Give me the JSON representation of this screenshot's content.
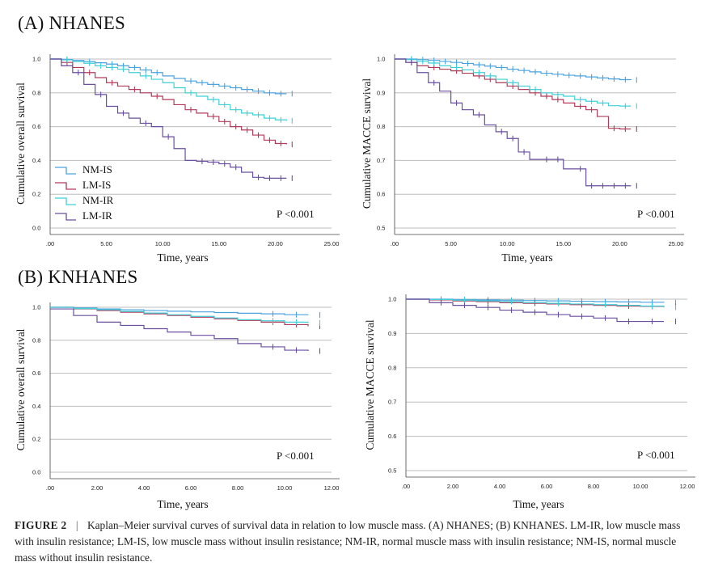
{
  "sections": {
    "a_title": "(A) NHANES",
    "b_title": "(B) KNHANES"
  },
  "colors": {
    "NM-IS": "#4aa3df",
    "LM-IS": "#b23a5a",
    "NM-IR": "#3fd0d8",
    "LM-IR": "#6a4fa0"
  },
  "caption": {
    "label": "FIGURE 2",
    "separator": "|",
    "text": "Kaplan–Meier survival curves of survival data in relation to low muscle mass. (A) NHANES; (B) KNHANES. LM-IR, low muscle mass with insulin resistance; LM-IS, low muscle mass without insulin resistance; NM-IR, normal muscle mass with insulin resistance; NM-IS, normal muscle mass without insulin resistance."
  },
  "chart_data": [
    {
      "id": "nhanes-overall",
      "type": "line",
      "ylabel": "Cumulative overall survival",
      "xlabel": "Time, years",
      "xlim": [
        0,
        25
      ],
      "ylim": [
        0,
        1.0
      ],
      "xticks": [
        ".00",
        "5.00",
        "10.00",
        "15.00",
        "20.00",
        "25.00"
      ],
      "yticks": [
        "0.0",
        "0.2",
        "0.4",
        "0.6",
        "0.8",
        "1.0"
      ],
      "p_value": "P <0.001",
      "legend": [
        "NM-IS",
        "LM-IS",
        "NM-IR",
        "LM-IR"
      ],
      "series": [
        {
          "name": "NM-IS",
          "x": [
            0,
            1,
            2,
            3,
            4,
            5,
            6,
            7,
            8,
            9,
            10,
            11,
            12,
            13,
            14,
            15,
            16,
            17,
            18,
            19,
            20,
            21
          ],
          "y": [
            1.0,
            0.998,
            0.992,
            0.985,
            0.978,
            0.97,
            0.96,
            0.95,
            0.935,
            0.92,
            0.9,
            0.885,
            0.87,
            0.86,
            0.85,
            0.84,
            0.83,
            0.82,
            0.81,
            0.8,
            0.795,
            0.795
          ],
          "censor": [
            1,
            3,
            5,
            6,
            7,
            8,
            9,
            12,
            13,
            14,
            15,
            16,
            17,
            18,
            19,
            20,
            21
          ]
        },
        {
          "name": "LM-IS",
          "x": [
            0,
            1,
            2,
            3,
            4,
            5,
            6,
            7,
            8,
            9,
            10,
            11,
            12,
            13,
            14,
            15,
            16,
            17,
            18,
            19,
            20,
            21
          ],
          "y": [
            1.0,
            0.98,
            0.95,
            0.92,
            0.89,
            0.86,
            0.84,
            0.82,
            0.8,
            0.78,
            0.76,
            0.73,
            0.7,
            0.68,
            0.66,
            0.63,
            0.6,
            0.58,
            0.55,
            0.52,
            0.5,
            0.495
          ],
          "censor": [
            1,
            3,
            5,
            7,
            9,
            12,
            14,
            15,
            16,
            17,
            18,
            19,
            20,
            21
          ]
        },
        {
          "name": "NM-IR",
          "x": [
            0,
            1,
            2,
            3,
            4,
            5,
            6,
            7,
            8,
            9,
            10,
            11,
            12,
            13,
            14,
            15,
            16,
            17,
            18,
            19,
            20,
            21
          ],
          "y": [
            1.0,
            0.995,
            0.985,
            0.975,
            0.96,
            0.95,
            0.94,
            0.92,
            0.9,
            0.88,
            0.86,
            0.83,
            0.8,
            0.78,
            0.76,
            0.73,
            0.7,
            0.68,
            0.67,
            0.65,
            0.64,
            0.635
          ],
          "censor": [
            1,
            3,
            4,
            5,
            6,
            8,
            12,
            14,
            15,
            16,
            17,
            18,
            19,
            20,
            21
          ]
        },
        {
          "name": "LM-IR",
          "x": [
            0,
            1,
            2,
            3,
            4,
            5,
            6,
            7,
            8,
            9,
            10,
            11,
            12,
            13,
            14,
            15,
            16,
            17,
            18,
            19,
            20,
            21
          ],
          "y": [
            1.0,
            0.96,
            0.92,
            0.85,
            0.79,
            0.72,
            0.68,
            0.65,
            0.62,
            0.6,
            0.54,
            0.47,
            0.4,
            0.395,
            0.39,
            0.38,
            0.36,
            0.33,
            0.3,
            0.295,
            0.295,
            0.295
          ],
          "censor": [
            2,
            4,
            6,
            8,
            10,
            13,
            14,
            15,
            16,
            18,
            19,
            20,
            21
          ]
        }
      ]
    },
    {
      "id": "nhanes-macce",
      "type": "line",
      "ylabel": "Cumulative MACCE survival",
      "xlabel": "Time, years",
      "xlim": [
        0,
        25
      ],
      "ylim": [
        0.5,
        1.0
      ],
      "xticks": [
        ".00",
        "5.00",
        "10.00",
        "15.00",
        "20.00",
        "25.00"
      ],
      "yticks": [
        "0.5",
        "0.6",
        "0.7",
        "0.8",
        "0.9",
        "1.0"
      ],
      "p_value": "P <0.001",
      "series": [
        {
          "name": "NM-IS",
          "x": [
            0,
            1,
            2,
            3,
            4,
            5,
            6,
            7,
            8,
            9,
            10,
            11,
            12,
            13,
            14,
            15,
            16,
            17,
            18,
            19,
            20,
            21
          ],
          "y": [
            1.0,
            1.0,
            0.998,
            0.996,
            0.993,
            0.99,
            0.987,
            0.983,
            0.979,
            0.975,
            0.97,
            0.966,
            0.962,
            0.958,
            0.955,
            0.952,
            0.95,
            0.947,
            0.944,
            0.941,
            0.939,
            0.938
          ],
          "censor": [
            1,
            2,
            3,
            4,
            5,
            6,
            7,
            8,
            9,
            10,
            11,
            12,
            13,
            14,
            15,
            16,
            17,
            18,
            19,
            20,
            21
          ]
        },
        {
          "name": "LM-IS",
          "x": [
            0,
            1,
            2,
            3,
            4,
            5,
            6,
            7,
            8,
            9,
            10,
            11,
            12,
            13,
            14,
            15,
            16,
            17,
            18,
            19,
            20,
            21
          ],
          "y": [
            1.0,
            0.99,
            0.98,
            0.975,
            0.97,
            0.965,
            0.958,
            0.95,
            0.94,
            0.93,
            0.92,
            0.91,
            0.9,
            0.89,
            0.88,
            0.87,
            0.86,
            0.85,
            0.83,
            0.795,
            0.793,
            0.793
          ],
          "censor": [
            1,
            3,
            5,
            7,
            8,
            10,
            12,
            13,
            14,
            16,
            17,
            19,
            20,
            21
          ]
        },
        {
          "name": "NM-IR",
          "x": [
            0,
            1,
            2,
            3,
            4,
            5,
            6,
            7,
            8,
            9,
            10,
            11,
            12,
            13,
            14,
            15,
            16,
            17,
            18,
            19,
            20,
            21
          ],
          "y": [
            1.0,
            0.998,
            0.993,
            0.988,
            0.98,
            0.975,
            0.968,
            0.96,
            0.95,
            0.94,
            0.93,
            0.92,
            0.91,
            0.9,
            0.895,
            0.89,
            0.88,
            0.875,
            0.87,
            0.862,
            0.861,
            0.861
          ],
          "censor": [
            1,
            2,
            3,
            5,
            7,
            8,
            10,
            12,
            14,
            16,
            17,
            18,
            20,
            21
          ]
        },
        {
          "name": "LM-IR",
          "x": [
            0,
            1,
            2,
            3,
            4,
            5,
            6,
            7,
            8,
            9,
            10,
            11,
            12,
            13,
            14,
            15,
            16,
            17,
            18,
            19,
            20,
            21
          ],
          "y": [
            1.0,
            0.99,
            0.96,
            0.93,
            0.905,
            0.87,
            0.85,
            0.835,
            0.805,
            0.785,
            0.765,
            0.725,
            0.703,
            0.703,
            0.703,
            0.675,
            0.675,
            0.625,
            0.625,
            0.625,
            0.625,
            0.625
          ],
          "censor": [
            1,
            3,
            5,
            7,
            9,
            10,
            11,
            13,
            14,
            16,
            17,
            18,
            19,
            20,
            21
          ]
        }
      ]
    },
    {
      "id": "knhanes-overall",
      "type": "line",
      "ylabel": "Cumulative overall survival",
      "xlabel": "Time, years",
      "xlim": [
        0,
        12
      ],
      "ylim": [
        0,
        1.0
      ],
      "xticks": [
        ".00",
        "2.00",
        "4.00",
        "6.00",
        "8.00",
        "10.00",
        "12.00"
      ],
      "yticks": [
        "0.0",
        "0.2",
        "0.4",
        "0.6",
        "0.8",
        "1.0"
      ],
      "p_value": "P <0.001",
      "series": [
        {
          "name": "NM-IS",
          "x": [
            0,
            1,
            2,
            3,
            4,
            5,
            6,
            7,
            8,
            9,
            10,
            11
          ],
          "y": [
            1.0,
            0.996,
            0.99,
            0.985,
            0.98,
            0.976,
            0.972,
            0.968,
            0.964,
            0.96,
            0.955,
            0.953
          ],
          "censor": [
            9,
            10,
            11
          ]
        },
        {
          "name": "LM-IS",
          "x": [
            0,
            1,
            2,
            3,
            4,
            5,
            6,
            7,
            8,
            9,
            10,
            11
          ],
          "y": [
            1.0,
            0.99,
            0.98,
            0.97,
            0.96,
            0.95,
            0.94,
            0.93,
            0.92,
            0.91,
            0.895,
            0.885
          ],
          "censor": [
            9,
            10,
            11
          ]
        },
        {
          "name": "NM-IR",
          "x": [
            0,
            1,
            2,
            3,
            4,
            5,
            6,
            7,
            8,
            9,
            10,
            11
          ],
          "y": [
            1.0,
            0.992,
            0.985,
            0.975,
            0.965,
            0.955,
            0.945,
            0.935,
            0.925,
            0.918,
            0.91,
            0.905
          ],
          "censor": [
            9,
            10,
            11
          ]
        },
        {
          "name": "LM-IR",
          "x": [
            0,
            1,
            2,
            3,
            4,
            5,
            6,
            7,
            8,
            9,
            10,
            11
          ],
          "y": [
            0.99,
            0.95,
            0.91,
            0.89,
            0.87,
            0.85,
            0.83,
            0.81,
            0.78,
            0.76,
            0.74,
            0.735
          ],
          "censor": [
            9,
            10,
            11
          ]
        }
      ]
    },
    {
      "id": "knhanes-macce",
      "type": "line",
      "ylabel": "Cumulative MACCE survival",
      "xlabel": "Time, years",
      "xlim": [
        0,
        12
      ],
      "ylim": [
        0.5,
        1.0
      ],
      "xticks": [
        ".00",
        "2.00",
        "4.00",
        "6.00",
        "8.00",
        "10.00",
        "12.00"
      ],
      "yticks": [
        "0.5",
        "0.6",
        "0.7",
        "0.8",
        "0.9",
        "1.0"
      ],
      "p_value": "P <0.001",
      "series": [
        {
          "name": "NM-IS",
          "x": [
            0,
            1,
            2,
            3,
            4,
            5,
            6,
            7,
            8,
            9,
            10,
            11
          ],
          "y": [
            1.0,
            1.0,
            0.999,
            0.998,
            0.997,
            0.996,
            0.995,
            0.994,
            0.993,
            0.992,
            0.991,
            0.99
          ],
          "censor": [
            1,
            2,
            3,
            4,
            5,
            6,
            7,
            8,
            9,
            10,
            11
          ]
        },
        {
          "name": "LM-IS",
          "x": [
            0,
            1,
            2,
            3,
            4,
            5,
            6,
            7,
            8,
            9,
            10,
            11
          ],
          "y": [
            1.0,
            0.998,
            0.995,
            0.993,
            0.99,
            0.988,
            0.986,
            0.984,
            0.982,
            0.98,
            0.979,
            0.978
          ],
          "censor": [
            3,
            5,
            7,
            9,
            10,
            11
          ]
        },
        {
          "name": "NM-IR",
          "x": [
            0,
            1,
            2,
            3,
            4,
            5,
            6,
            7,
            8,
            9,
            10,
            11
          ],
          "y": [
            1.0,
            0.999,
            0.997,
            0.995,
            0.993,
            0.99,
            0.988,
            0.986,
            0.984,
            0.982,
            0.98,
            0.976
          ],
          "censor": [
            2,
            4,
            6,
            8,
            10,
            11
          ]
        },
        {
          "name": "LM-IR",
          "x": [
            0,
            1,
            2,
            3,
            4,
            5,
            6,
            7,
            8,
            9,
            10,
            11
          ],
          "y": [
            1.0,
            0.99,
            0.982,
            0.976,
            0.968,
            0.962,
            0.955,
            0.95,
            0.945,
            0.935,
            0.935,
            0.935
          ],
          "censor": [
            1,
            2,
            3,
            4,
            5,
            6,
            7,
            8,
            9,
            10,
            11
          ]
        }
      ]
    }
  ]
}
